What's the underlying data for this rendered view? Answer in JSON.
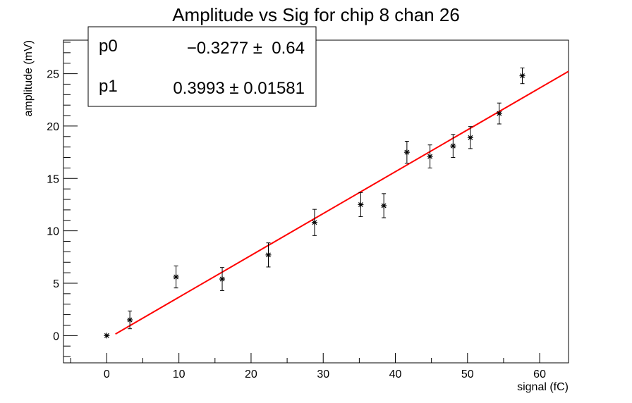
{
  "chart_data": {
    "type": "scatter",
    "title": "Amplitude vs Sig for chip 8 chan 26",
    "xlabel": "signal (fC)",
    "ylabel": "amplitude (mV)",
    "xlim": [
      -6,
      64
    ],
    "ylim": [
      -2.6,
      28.2
    ],
    "x_ticks": [
      0,
      10,
      20,
      30,
      40,
      50,
      60
    ],
    "y_ticks": [
      0,
      5,
      10,
      15,
      20,
      25
    ],
    "x_tick_labels": [
      "0",
      "10",
      "20",
      "30",
      "40",
      "50",
      "60"
    ],
    "y_tick_labels": [
      "0",
      "5",
      "10",
      "15",
      "20",
      "25"
    ],
    "grid": false,
    "series": [
      {
        "marker": "asterisk",
        "color": "#000000",
        "points": [
          {
            "x": 0.0,
            "y": 0.0,
            "err": 0.0
          },
          {
            "x": 3.2,
            "y": 1.5,
            "err": 0.85
          },
          {
            "x": 9.6,
            "y": 5.6,
            "err": 1.05
          },
          {
            "x": 16.0,
            "y": 5.4,
            "err": 1.1
          },
          {
            "x": 22.4,
            "y": 7.7,
            "err": 1.15
          },
          {
            "x": 28.8,
            "y": 10.8,
            "err": 1.25
          },
          {
            "x": 35.2,
            "y": 12.5,
            "err": 1.15
          },
          {
            "x": 38.4,
            "y": 12.4,
            "err": 1.15
          },
          {
            "x": 41.6,
            "y": 17.5,
            "err": 1.05
          },
          {
            "x": 44.8,
            "y": 17.1,
            "err": 1.1
          },
          {
            "x": 48.0,
            "y": 18.1,
            "err": 1.1
          },
          {
            "x": 50.4,
            "y": 18.9,
            "err": 1.05
          },
          {
            "x": 54.4,
            "y": 21.2,
            "err": 1.0
          },
          {
            "x": 57.6,
            "y": 24.8,
            "err": 0.75
          }
        ]
      }
    ],
    "fit": {
      "color": "#ff0000",
      "p0": -0.3277,
      "p1": 0.3993,
      "x_range": [
        1.2,
        64
      ]
    },
    "stats_box": {
      "placement": "top-left",
      "rows": [
        {
          "name": "p0",
          "value": "−0.3277 ±  0.64"
        },
        {
          "name": "p1",
          "value": "0.3993 ± 0.01581"
        }
      ]
    }
  }
}
